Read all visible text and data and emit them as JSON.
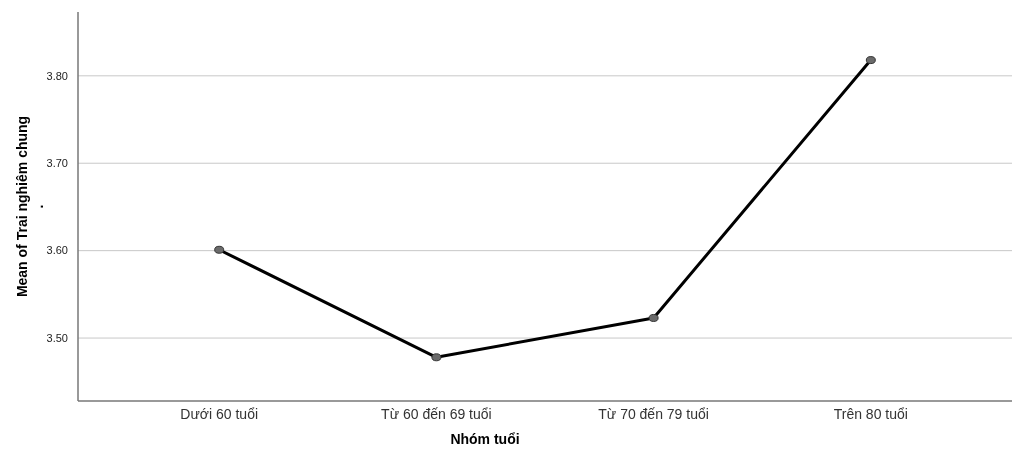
{
  "chart_data": {
    "type": "line",
    "xlabel": "Nhóm tuổi",
    "ylabel": "Mean of Trai nghiêm chung\n.",
    "categories": [
      "Dưới 60 tuổi",
      "Từ 60 đến 69 tuổi",
      "Từ 70 đến 79 tuổi",
      "Trên 80 tuổi"
    ],
    "values": [
      3.601,
      3.478,
      3.523,
      3.818
    ],
    "color": "#000000",
    "ylim": [
      3.428,
      3.873
    ],
    "yticks": [
      {
        "value": 3.5,
        "label": "3.50"
      },
      {
        "value": 3.6,
        "label": "3.60"
      },
      {
        "value": 3.7,
        "label": "3.70"
      },
      {
        "value": 3.8,
        "label": "3.80"
      }
    ],
    "grid": "y",
    "marker": "circle",
    "line_style": "solid"
  }
}
